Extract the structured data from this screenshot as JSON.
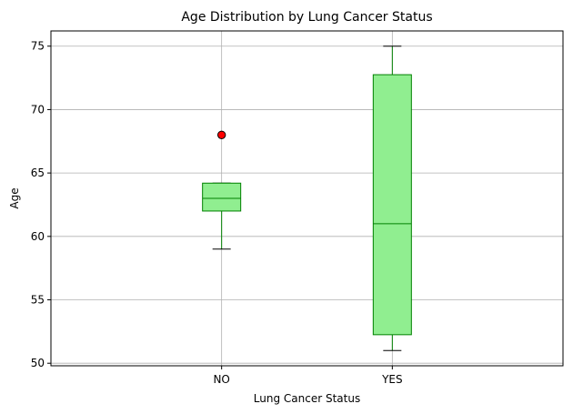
{
  "chart_data": {
    "type": "box",
    "title": "Age Distribution by Lung Cancer Status",
    "xlabel": "Lung Cancer Status",
    "ylabel": "Age",
    "categories": [
      "NO",
      "YES"
    ],
    "ylim": [
      49.8,
      76.2
    ],
    "yticks": [
      50,
      55,
      60,
      65,
      70,
      75
    ],
    "grid": true,
    "boxes": [
      {
        "category": "NO",
        "whisker_low": 59,
        "q1": 62,
        "median": 63,
        "q3": 64.2,
        "whisker_high": 64.2,
        "outliers": [
          68
        ]
      },
      {
        "category": "YES",
        "whisker_low": 51,
        "q1": 52.25,
        "median": 61,
        "q3": 72.75,
        "whisker_high": 75,
        "outliers": []
      }
    ],
    "colors": {
      "box_fill": "#90ee90",
      "box_edge": "#008000",
      "median": "#008000",
      "whisker": "#008000",
      "cap": "#000000",
      "outlier_fill": "#ff0000",
      "outlier_edge": "#000000",
      "grid": "#b0b0b0"
    }
  }
}
